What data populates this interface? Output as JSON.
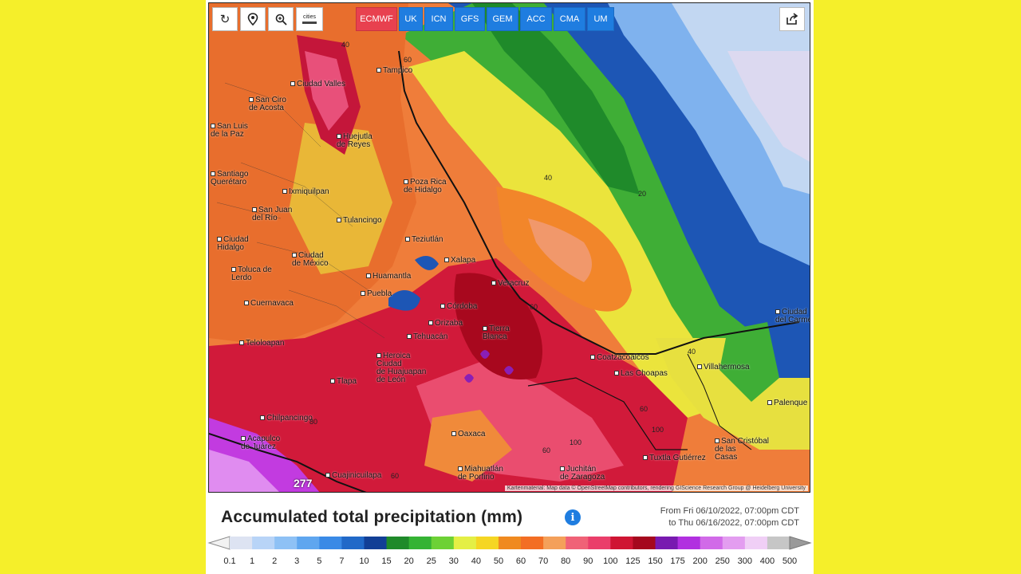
{
  "toolbar": {
    "buttons": [
      {
        "name": "refresh-icon"
      },
      {
        "name": "location-pin-icon"
      },
      {
        "name": "zoom-icon"
      },
      {
        "name": "cities-toggle-icon",
        "label": "cities"
      }
    ],
    "models": [
      {
        "label": "ECMWF",
        "active": true
      },
      {
        "label": "UK"
      },
      {
        "label": "ICN"
      },
      {
        "label": "GFS"
      },
      {
        "label": "GEM"
      },
      {
        "label": "ACC"
      },
      {
        "label": "CMA"
      },
      {
        "label": "UM"
      }
    ],
    "share_icon": "share-icon"
  },
  "map": {
    "cities": [
      {
        "label": "Tampico"
      },
      {
        "label": "Ciudad Valles"
      },
      {
        "label": "San Ciro\nde Acosta"
      },
      {
        "label": "San Luis\nde la Paz"
      },
      {
        "label": "Huejutla\nde Reyes"
      },
      {
        "label": "Santiago\nQuerétaro"
      },
      {
        "label": "Ixmiquilpan"
      },
      {
        "label": "Poza Rica\nde Hidalgo"
      },
      {
        "label": "San Juan\ndel Río"
      },
      {
        "label": "Tulancingo"
      },
      {
        "label": "Teziutlán"
      },
      {
        "label": "Ciudad\nHidalgo"
      },
      {
        "label": "Ciudad\nde México"
      },
      {
        "label": "Xalapa"
      },
      {
        "label": "Toluca de\nLerdo"
      },
      {
        "label": "Huamantla"
      },
      {
        "label": "Veracruz"
      },
      {
        "label": "Puebla"
      },
      {
        "label": "Cuernavaca"
      },
      {
        "label": "Córdoba"
      },
      {
        "label": "Orizaba"
      },
      {
        "label": "Tierra\nBlanca"
      },
      {
        "label": "Tehuacán"
      },
      {
        "label": "Teloloapan"
      },
      {
        "label": "Heroica\nCiudad\nde Huajuapan\nde León"
      },
      {
        "label": "Tlapa"
      },
      {
        "label": "Coatzacoalcos"
      },
      {
        "label": "Las Choapas"
      },
      {
        "label": "Villahermosa"
      },
      {
        "label": "Ciudad\ndel Carmen"
      },
      {
        "label": "Palenque"
      },
      {
        "label": "Chilpancingo"
      },
      {
        "label": "Acapulco\nde Juárez"
      },
      {
        "label": "Oaxaca"
      },
      {
        "label": "Cuajinicuilapa"
      },
      {
        "label": "Miahuatlán\nde Porfirio"
      },
      {
        "label": "Juchitán\nde Zaragoza"
      },
      {
        "label": "Tuxtla Gutiérrez"
      },
      {
        "label": "San Cristóbal\nde las\nCasas"
      }
    ],
    "contours": [
      "40",
      "60",
      "40",
      "20",
      "60",
      "40",
      "60",
      "100",
      "60",
      "100",
      "60",
      "80"
    ],
    "peak_marker": "277",
    "attribution": "Kartenmaterial: Map data © OpenStreetMap contributors, rendering GIScience Research Group @ Heidelberg University"
  },
  "legend": {
    "title": "Accumulated total precipitation (mm)",
    "info_icon": "info-icon",
    "date_from": "From Fri 06/10/2022, 07:00pm CDT",
    "date_to": "to Thu 06/16/2022, 07:00pm CDT",
    "ticks": [
      "0.1",
      "1",
      "2",
      "3",
      "5",
      "7",
      "10",
      "15",
      "20",
      "25",
      "30",
      "40",
      "50",
      "60",
      "70",
      "80",
      "90",
      "100",
      "125",
      "150",
      "175",
      "200",
      "250",
      "300",
      "400",
      "500"
    ],
    "colors": [
      "#dde3f2",
      "#b8d4f7",
      "#8ec1f5",
      "#5fa6ef",
      "#3a8ae6",
      "#2169c8",
      "#123f96",
      "#1f8a2a",
      "#35b334",
      "#6dd135",
      "#e4ef45",
      "#f5d623",
      "#f08a1f",
      "#f36e24",
      "#f4a05a",
      "#f06277",
      "#ea3e6a",
      "#cf1533",
      "#a5081e",
      "#781ab0",
      "#b130e0",
      "#d16ae8",
      "#e39df0",
      "#f0cff6",
      "#c6c6c6"
    ]
  }
}
